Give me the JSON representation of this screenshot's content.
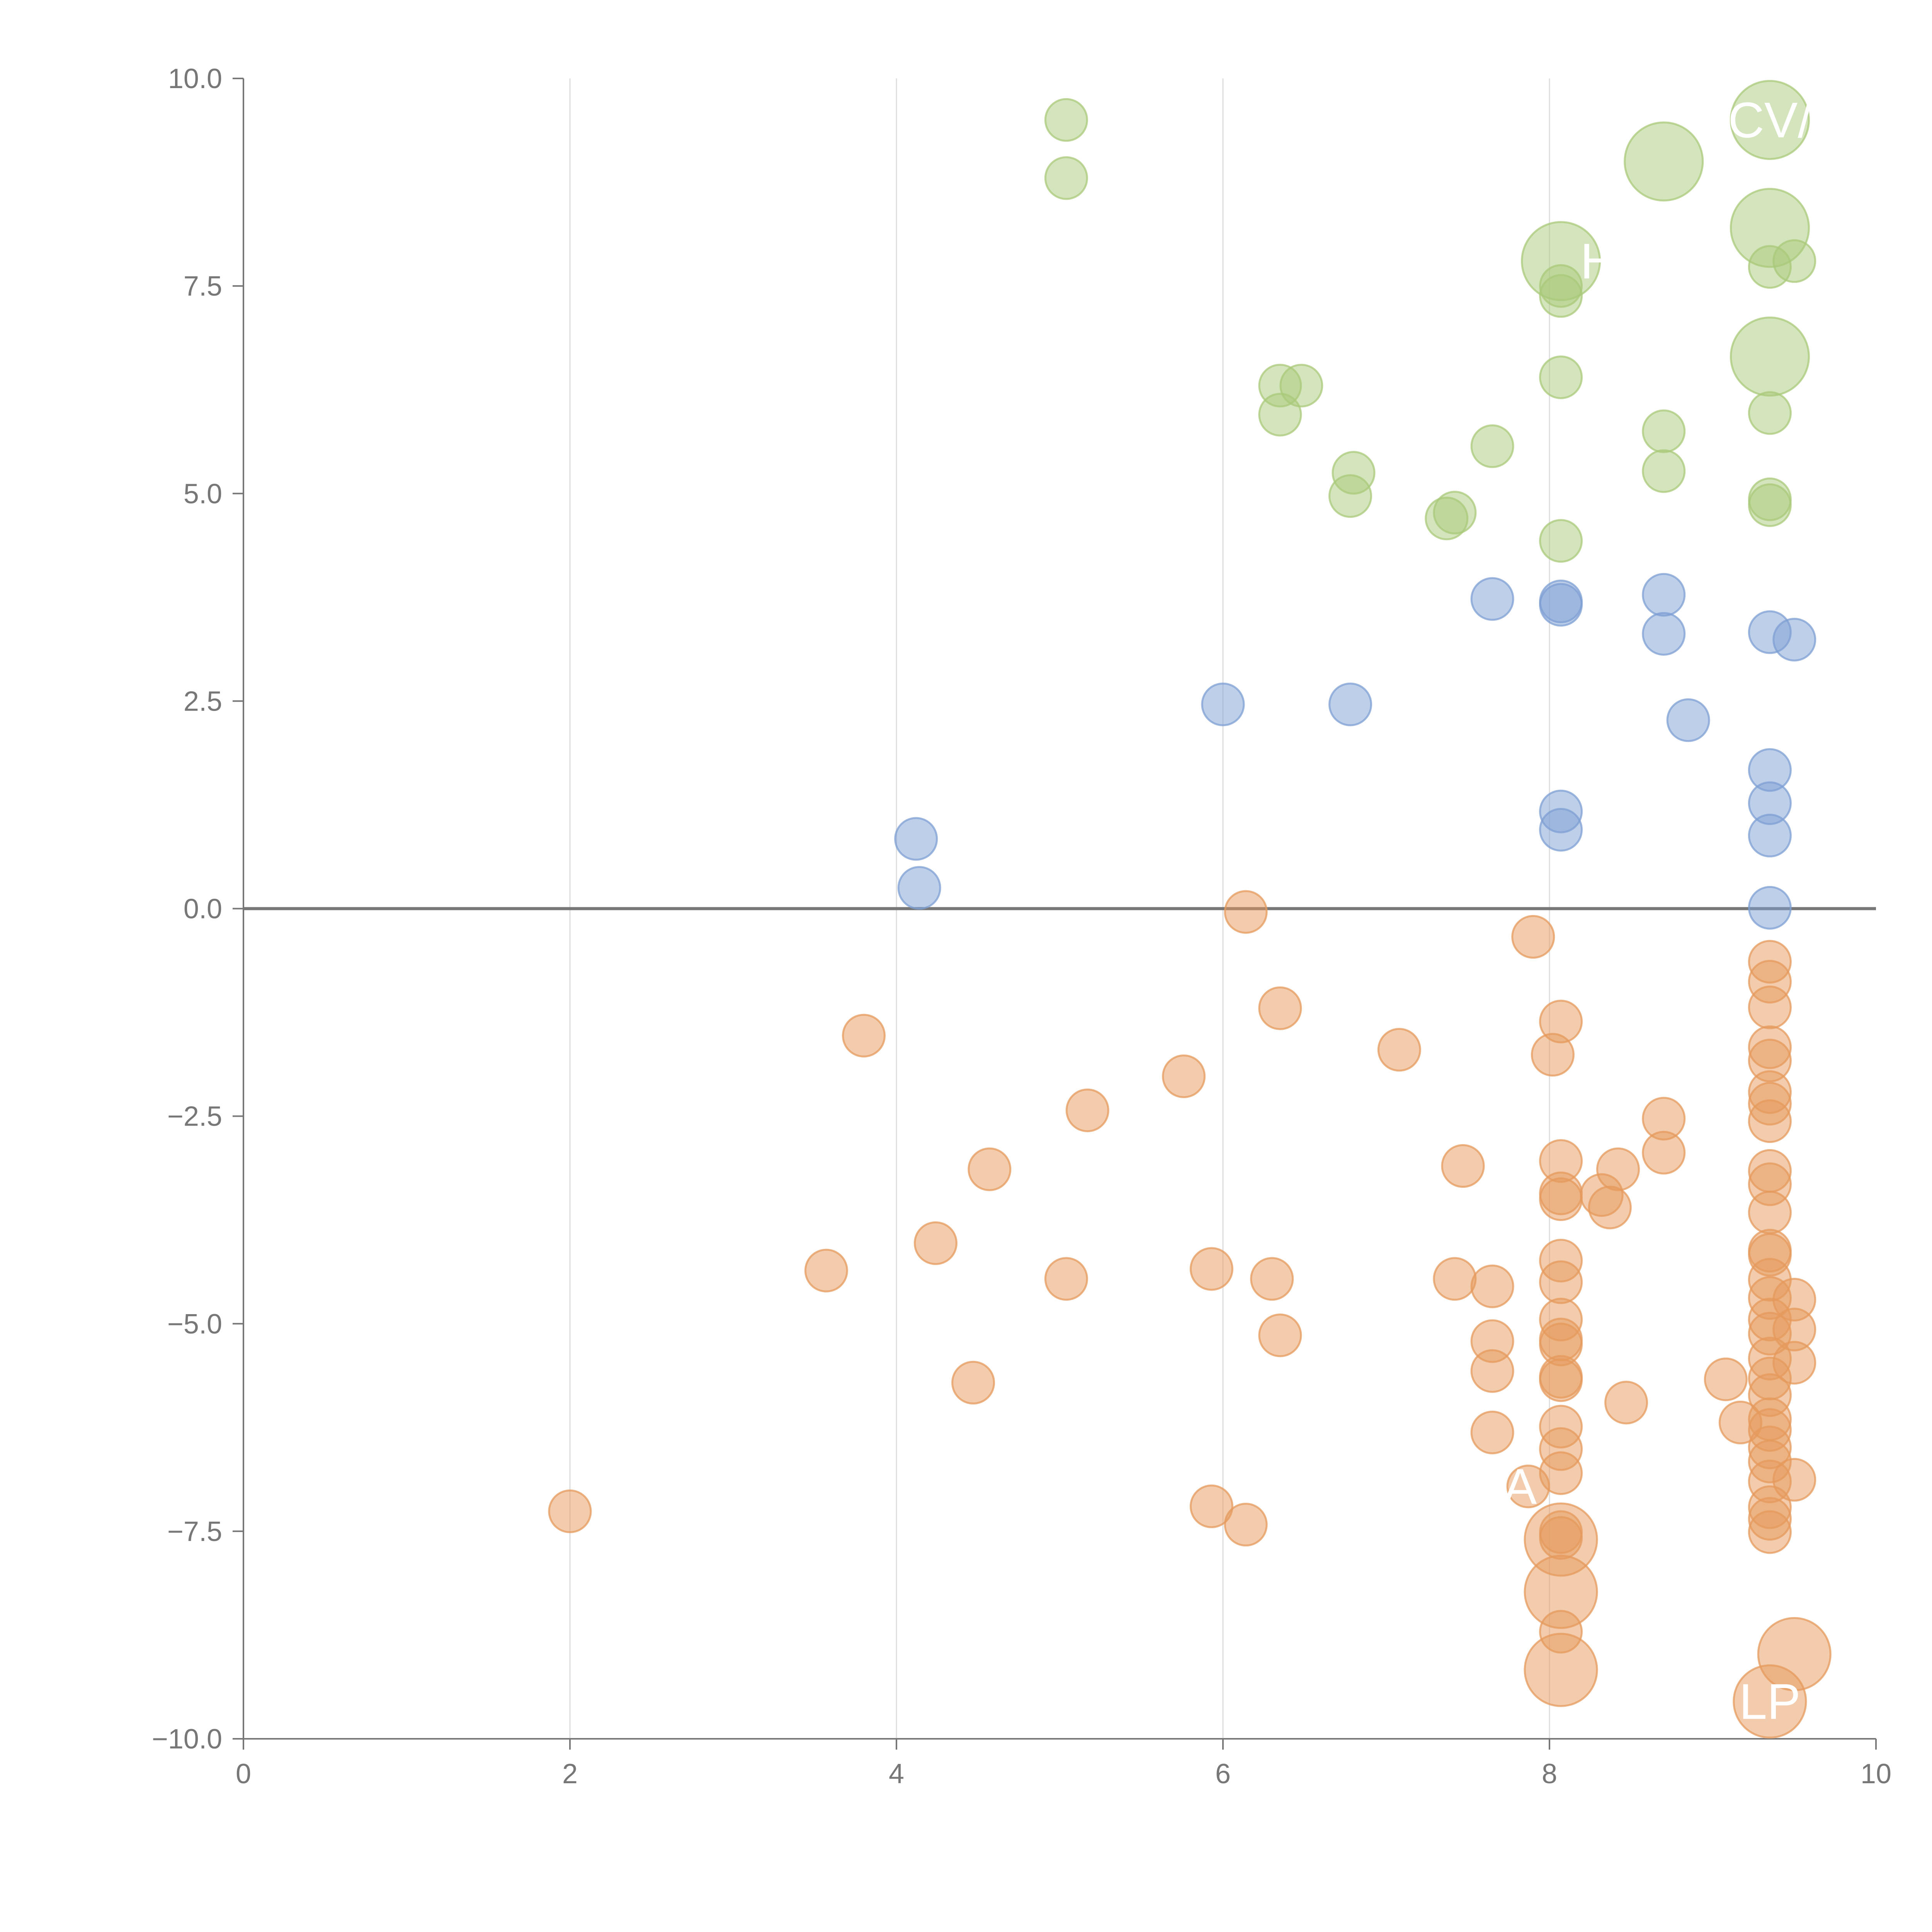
{
  "chart_data": {
    "type": "scatter",
    "title": "",
    "xlabel": "",
    "ylabel": "",
    "xlim": [
      0,
      10
    ],
    "ylim": [
      -10,
      10
    ],
    "x_ticks": [
      "0",
      "2",
      "4",
      "6",
      "8",
      "10"
    ],
    "y_ticks": [
      "10.0",
      "7.5",
      "5.0",
      "2.5",
      "0.0",
      "−2.5",
      "−5.0",
      "−7.5",
      "−10.0"
    ],
    "x_tick_values": [
      0,
      2,
      4,
      6,
      8,
      10
    ],
    "y_tick_values": [
      10,
      7.5,
      5,
      2.5,
      0,
      -2.5,
      -5,
      -7.5,
      -10
    ],
    "grid": "vertical gridlines only",
    "legend": "none",
    "colors": {
      "green": "#a9c97a",
      "blue": "#7d9fd3",
      "orange": "#e59a5c",
      "axis": "#777777"
    },
    "series": [
      {
        "color": "green",
        "points": [
          [
            5.04,
            9.5,
            1
          ],
          [
            5.04,
            8.8,
            1
          ],
          [
            6.35,
            6.3,
            1
          ],
          [
            6.48,
            6.3,
            1
          ],
          [
            6.35,
            5.95,
            1
          ],
          [
            6.8,
            5.25,
            1
          ],
          [
            6.78,
            4.97,
            1
          ],
          [
            7.37,
            4.7,
            1
          ],
          [
            7.42,
            4.77,
            1
          ],
          [
            7.65,
            5.57,
            1
          ],
          [
            8.07,
            7.5,
            1
          ],
          [
            8.07,
            7.38,
            1
          ],
          [
            8.07,
            6.4,
            1
          ],
          [
            8.07,
            4.43,
            1
          ],
          [
            8.07,
            7.8,
            3.5
          ],
          [
            8.7,
            5.75,
            1
          ],
          [
            8.7,
            5.27,
            1
          ],
          [
            8.7,
            9.0,
            3.5
          ],
          [
            9.35,
            9.5,
            3.5
          ],
          [
            9.35,
            8.2,
            3.5
          ],
          [
            9.35,
            7.73,
            1
          ],
          [
            9.5,
            7.8,
            1
          ],
          [
            9.35,
            6.65,
            3.5
          ],
          [
            9.35,
            5.97,
            1
          ],
          [
            9.35,
            4.93,
            1
          ],
          [
            9.35,
            4.86,
            1
          ]
        ]
      },
      {
        "color": "blue",
        "points": [
          [
            4.12,
            0.84,
            1
          ],
          [
            4.14,
            0.25,
            1
          ],
          [
            6.0,
            2.46,
            1
          ],
          [
            6.78,
            2.46,
            1
          ],
          [
            7.65,
            3.73,
            1
          ],
          [
            8.07,
            3.7,
            1
          ],
          [
            8.07,
            3.66,
            1
          ],
          [
            8.07,
            1.17,
            1
          ],
          [
            8.07,
            0.95,
            1
          ],
          [
            8.7,
            3.78,
            1
          ],
          [
            8.7,
            3.31,
            1
          ],
          [
            8.85,
            2.27,
            1
          ],
          [
            9.35,
            3.33,
            1
          ],
          [
            9.5,
            3.24,
            1
          ],
          [
            9.35,
            1.67,
            1
          ],
          [
            9.35,
            1.27,
            1
          ],
          [
            9.35,
            0.88,
            1
          ],
          [
            9.35,
            0.01,
            1
          ]
        ]
      },
      {
        "color": "orange",
        "points": [
          [
            2.0,
            -7.26,
            1
          ],
          [
            3.57,
            -4.36,
            1
          ],
          [
            3.8,
            -1.53,
            1
          ],
          [
            4.24,
            -4.03,
            1
          ],
          [
            4.47,
            -5.71,
            1
          ],
          [
            4.57,
            -3.14,
            1
          ],
          [
            5.04,
            -4.46,
            1
          ],
          [
            5.17,
            -2.43,
            1
          ],
          [
            5.76,
            -2.02,
            1
          ],
          [
            5.93,
            -4.34,
            1
          ],
          [
            5.93,
            -7.2,
            1
          ],
          [
            6.14,
            -0.04,
            1
          ],
          [
            6.14,
            -7.42,
            1
          ],
          [
            6.3,
            -4.46,
            1
          ],
          [
            6.35,
            -1.2,
            1
          ],
          [
            6.35,
            -5.14,
            1
          ],
          [
            7.08,
            -1.7,
            1
          ],
          [
            7.42,
            -4.46,
            1
          ],
          [
            7.47,
            -3.1,
            1
          ],
          [
            7.65,
            -4.55,
            1
          ],
          [
            7.65,
            -5.21,
            1
          ],
          [
            7.65,
            -5.57,
            1
          ],
          [
            7.65,
            -6.31,
            1
          ],
          [
            7.9,
            -0.34,
            1
          ],
          [
            7.87,
            -6.96,
            1
          ],
          [
            8.02,
            -1.76,
            1
          ],
          [
            8.07,
            -1.36,
            1
          ],
          [
            8.07,
            -3.04,
            1
          ],
          [
            8.07,
            -3.43,
            1
          ],
          [
            8.07,
            -3.5,
            1
          ],
          [
            8.07,
            -4.24,
            1
          ],
          [
            8.07,
            -4.5,
            1
          ],
          [
            8.07,
            -4.95,
            1
          ],
          [
            8.07,
            -5.19,
            1
          ],
          [
            8.07,
            -5.25,
            1
          ],
          [
            8.07,
            -5.64,
            1
          ],
          [
            8.07,
            -5.68,
            1
          ],
          [
            8.07,
            -6.24,
            1
          ],
          [
            8.07,
            -6.51,
            1
          ],
          [
            8.07,
            -6.8,
            1
          ],
          [
            8.07,
            -7.51,
            1
          ],
          [
            8.07,
            -7.58,
            1
          ],
          [
            8.07,
            -8.71,
            1
          ],
          [
            8.07,
            -7.6,
            3.0
          ],
          [
            8.07,
            -8.23,
            3.0
          ],
          [
            8.07,
            -9.17,
            3.0
          ],
          [
            8.32,
            -3.45,
            1
          ],
          [
            8.37,
            -3.6,
            1
          ],
          [
            8.42,
            -3.14,
            1
          ],
          [
            8.47,
            -5.95,
            1
          ],
          [
            8.7,
            -2.53,
            1
          ],
          [
            8.7,
            -2.94,
            1
          ],
          [
            9.08,
            -5.67,
            1
          ],
          [
            9.17,
            -6.19,
            1
          ],
          [
            9.35,
            -0.64,
            1
          ],
          [
            9.35,
            -0.88,
            1
          ],
          [
            9.35,
            -1.19,
            1
          ],
          [
            9.35,
            -1.67,
            1
          ],
          [
            9.35,
            -1.83,
            1
          ],
          [
            9.35,
            -2.21,
            1
          ],
          [
            9.35,
            -2.35,
            1
          ],
          [
            9.35,
            -2.56,
            1
          ],
          [
            9.35,
            -3.16,
            1
          ],
          [
            9.35,
            -3.32,
            1
          ],
          [
            9.35,
            -3.66,
            1
          ],
          [
            9.35,
            -4.12,
            1
          ],
          [
            9.35,
            -4.17,
            1
          ],
          [
            9.35,
            -4.47,
            1
          ],
          [
            9.35,
            -4.69,
            1
          ],
          [
            9.35,
            -4.95,
            1
          ],
          [
            9.35,
            -5.12,
            1
          ],
          [
            9.35,
            -5.42,
            1
          ],
          [
            9.35,
            -5.66,
            1
          ],
          [
            9.35,
            -5.86,
            1
          ],
          [
            9.35,
            -6.15,
            1
          ],
          [
            9.35,
            -6.28,
            1
          ],
          [
            9.35,
            -6.49,
            1
          ],
          [
            9.35,
            -6.66,
            1
          ],
          [
            9.35,
            -6.9,
            1
          ],
          [
            9.35,
            -7.21,
            1
          ],
          [
            9.35,
            -7.35,
            1
          ],
          [
            9.35,
            -7.51,
            1
          ],
          [
            9.5,
            -4.71,
            1
          ],
          [
            9.5,
            -5.07,
            1
          ],
          [
            9.5,
            -5.47,
            1
          ],
          [
            9.5,
            -6.88,
            1
          ],
          [
            9.5,
            -8.98,
            3.0
          ],
          [
            9.35,
            -9.55,
            3.0
          ]
        ]
      }
    ],
    "point_labels": [
      {
        "text": "CV/",
        "x": 9.35,
        "y": 9.5
      },
      {
        "text": "H",
        "x": 8.3,
        "y": 7.8
      },
      {
        "text": "A",
        "x": 7.82,
        "y": -6.96
      },
      {
        "text": "LP",
        "x": 9.35,
        "y": -9.55
      }
    ]
  }
}
